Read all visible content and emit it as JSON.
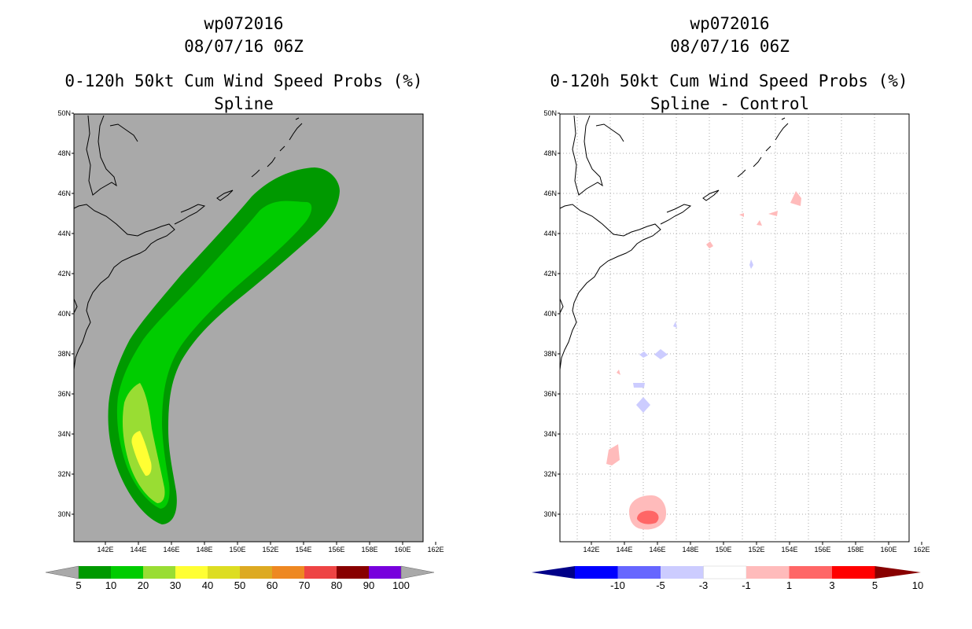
{
  "left_panel": {
    "storm_id": "wp072016",
    "datetime": "08/07/16 06Z",
    "product": "0-120h 50kt Cum Wind Speed Probs (%)",
    "subtitle": "Spline",
    "colorbar": {
      "labels": [
        "5",
        "10",
        "20",
        "30",
        "40",
        "50",
        "60",
        "70",
        "80",
        "90",
        "100"
      ],
      "colors": [
        "#009900",
        "#00cc00",
        "#99dd33",
        "#ffff33",
        "#dddd22",
        "#ddaa22",
        "#ee8822",
        "#ee4444",
        "#880000",
        "#7700dd"
      ]
    }
  },
  "right_panel": {
    "storm_id": "wp072016",
    "datetime": "08/07/16 06Z",
    "product": "0-120h 50kt Cum Wind Speed Probs (%)",
    "subtitle": "Spline - Control",
    "colorbar": {
      "labels": [
        "-10",
        "-5",
        "-3",
        "-1",
        "1",
        "3",
        "5",
        "10"
      ],
      "colors": [
        "#0000cc",
        "#0000ff",
        "#6666ff",
        "#ccccff",
        "#ffffff",
        "#ffbbbb",
        "#ff6666",
        "#ff0000",
        "#880000"
      ]
    }
  },
  "axes": {
    "lon_labels": [
      "142E",
      "144E",
      "146E",
      "148E",
      "150E",
      "152E",
      "154E",
      "156E",
      "158E",
      "160E",
      "162E"
    ],
    "lat_labels": [
      "30N",
      "32N",
      "34N",
      "36N",
      "38N",
      "40N",
      "42N",
      "44N",
      "46N",
      "48N",
      "50N"
    ]
  },
  "colors": {
    "background_gray": "#a9a9a9",
    "land_line": "#000000"
  }
}
